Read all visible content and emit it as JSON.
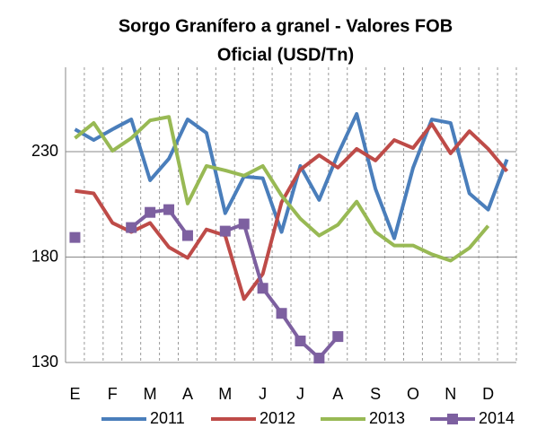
{
  "chart_data": {
    "type": "line",
    "title": "Sorgo Granífero a granel - Valores FOB",
    "subtitle": "Oficial (USD/Tn)",
    "categories": [
      "E",
      null,
      "F",
      null,
      "M",
      null,
      "A",
      null,
      "M",
      null,
      "J",
      null,
      "J",
      null,
      "A",
      null,
      "S",
      null,
      "O",
      null,
      "N",
      null,
      "D",
      null
    ],
    "ylim": [
      130,
      270
    ],
    "yticks": [
      130,
      180,
      230
    ],
    "grid": true,
    "legend": "bottom",
    "series": [
      {
        "name": "2011",
        "color": "#4a7ebb",
        "values": [
          240.6,
          235.5,
          240.6,
          245.3,
          216.4,
          226.6,
          245.3,
          238.9,
          200.8,
          218.2,
          217.4,
          191.9,
          223.2,
          207.1,
          228.8,
          247.9,
          212.3,
          188.9,
          222.3,
          245.3,
          243.6,
          210.2,
          202.5,
          226.3
        ]
      },
      {
        "name": "2012",
        "color": "#be4b48",
        "values": [
          211.4,
          210.2,
          196.2,
          191.9,
          196.2,
          184.7,
          179.6,
          193.1,
          190.2,
          160.1,
          172.0,
          206.0,
          221.5,
          228.3,
          222.4,
          231.3,
          225.8,
          235.5,
          231.7,
          243.1,
          229.2,
          239.7,
          231.3,
          220.7
        ]
      },
      {
        "name": "2013",
        "color": "#98b954",
        "values": [
          236.4,
          243.6,
          230.4,
          236.4,
          244.8,
          246.5,
          205.4,
          223.2,
          221.1,
          218.6,
          223.2,
          209.2,
          198.2,
          190.2,
          195.3,
          206.3,
          191.9,
          185.5,
          185.5,
          181.3,
          178.3,
          184.3,
          194.8,
          null
        ]
      },
      {
        "name": "2014",
        "color": "#7d60a0",
        "marker": "square",
        "values": [
          189.3,
          null,
          null,
          194.0,
          201.2,
          202.5,
          190.2,
          null,
          192.3,
          195.7,
          165.2,
          153.3,
          140.2,
          132.1,
          142.3,
          null,
          null,
          null,
          null,
          null,
          null,
          null,
          null,
          null
        ]
      }
    ]
  }
}
